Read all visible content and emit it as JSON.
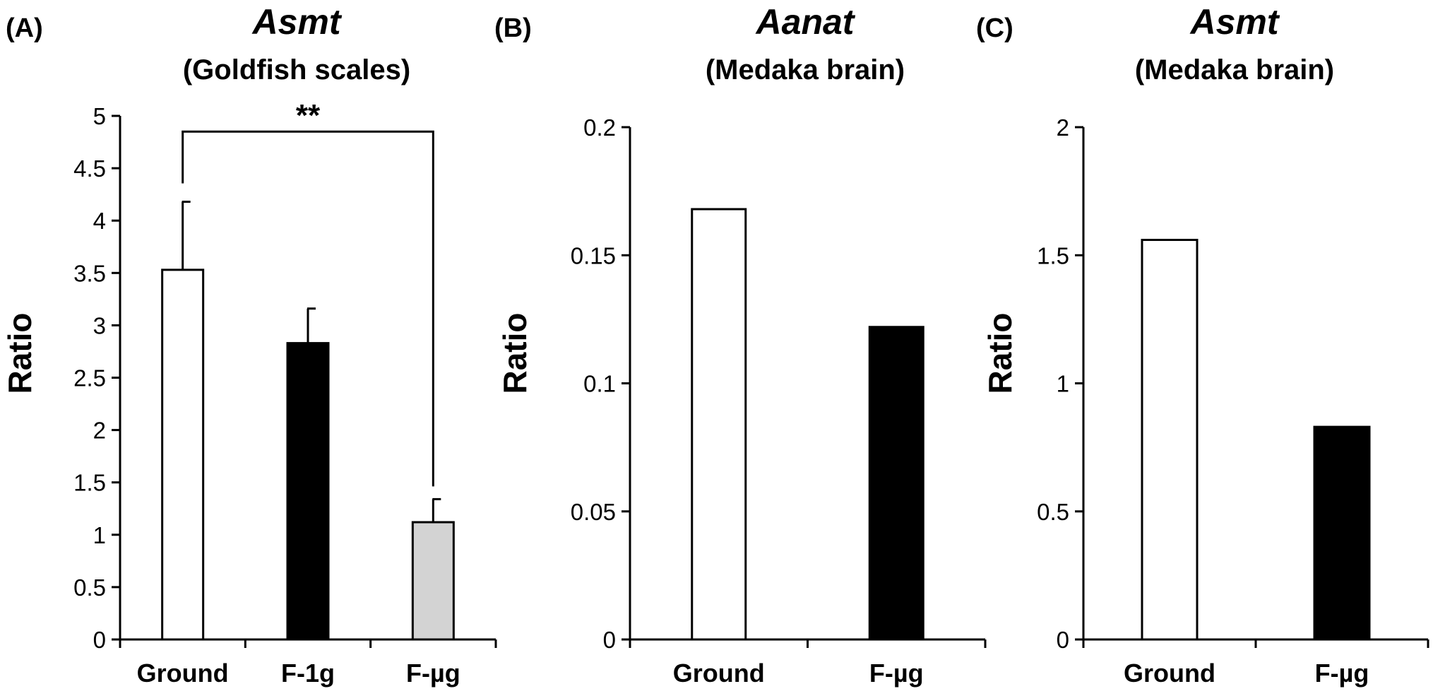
{
  "chart_data": [
    {
      "type": "bar",
      "panel": "(A)",
      "title": "Asmt",
      "subtitle": "(Goldfish scales)",
      "xlabel": "",
      "ylabel": "Ratio",
      "ylim": [
        0,
        5
      ],
      "yticks": [
        "0",
        "0.5",
        "1",
        "1.5",
        "2",
        "2.5",
        "3",
        "3.5",
        "4",
        "4.5",
        "5"
      ],
      "categories": [
        "Ground",
        "F-1g",
        "F-µg"
      ],
      "values": [
        3.53,
        2.83,
        1.12
      ],
      "error": [
        0.65,
        0.33,
        0.22
      ],
      "colors": [
        "#ffffff",
        "#000000",
        "#d3d3d3"
      ],
      "significance": {
        "from": 0,
        "to": 2,
        "label": "**",
        "level": 4.85
      }
    },
    {
      "type": "bar",
      "panel": "(B)",
      "title": "Aanat",
      "subtitle": "(Medaka brain)",
      "xlabel": "",
      "ylabel": "Ratio",
      "ylim": [
        0,
        0.2
      ],
      "yticks": [
        "0",
        "0.05",
        "0.1",
        "0.15",
        "0.2"
      ],
      "categories": [
        "Ground",
        "F-µg"
      ],
      "values": [
        0.168,
        0.122
      ],
      "colors": [
        "#ffffff",
        "#000000"
      ]
    },
    {
      "type": "bar",
      "panel": "(C)",
      "title": "Asmt",
      "subtitle": "(Medaka brain)",
      "xlabel": "",
      "ylabel": "Ratio",
      "ylim": [
        0,
        2
      ],
      "yticks": [
        "0",
        "0.5",
        "1",
        "1.5",
        "2"
      ],
      "categories": [
        "Ground",
        "F-µg"
      ],
      "values": [
        1.56,
        0.83
      ],
      "colors": [
        "#ffffff",
        "#000000"
      ]
    }
  ]
}
